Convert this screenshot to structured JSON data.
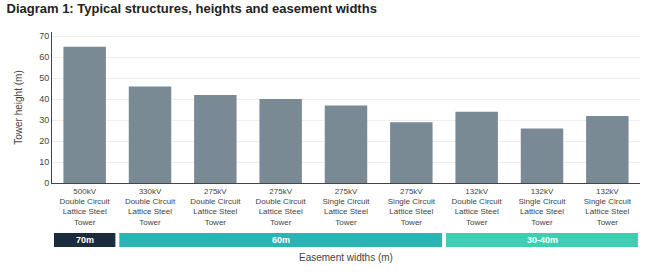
{
  "chart_data": {
    "type": "bar",
    "title": "Diagram 1: Typical structures, heights and easement widths",
    "ylabel": "Tower height (m)",
    "xlabel": "Easement widths (m)",
    "categories": [
      "500kV\nDouble Circuit\nLattice Steel\nTower",
      "330kV\nDouble Circuit\nLattice Steel\nTower",
      "275kV\nDouble Circuit\nLattice Steel\nTower",
      "275kV\nDouble Circuit\nLattice Steel\nTower",
      "275kV\nSingle Circuit\nLattice Steel\nTower",
      "275kV\nSingle Circuit\nLattice Steel\nTower",
      "132kV\nDouble Circuit\nLattice Steel\nTower",
      "132kV\nSingle Circuit\nLattice Steel\nTower",
      "132kV\nSingle Circuit\nLattice Steel\nTower"
    ],
    "values": [
      65,
      46,
      42,
      40,
      37,
      29,
      34,
      26,
      32
    ],
    "color": "#7a8a95",
    "easement": [
      "70m",
      "60m",
      "60m",
      "60m",
      "60m",
      "60m",
      "30-40m",
      "30-40m",
      "30-40m"
    ],
    "easement_colors": [
      "#1c2b39",
      "#2ab5b5",
      "#2ab5b5",
      "#2ab5b5",
      "#2ab5b5",
      "#2ab5b5",
      "#3ecfb2",
      "#3ecfb2",
      "#3ecfb2"
    ],
    "ylim": [
      0,
      72
    ],
    "yticks": [
      0,
      10,
      20,
      30,
      40,
      50,
      60,
      70
    ],
    "grid": true
  }
}
